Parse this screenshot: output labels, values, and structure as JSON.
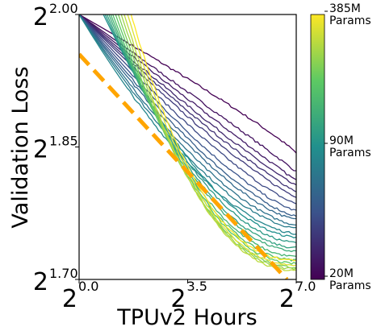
{
  "chart_data": {
    "type": "line",
    "xlabel": "TPUv2 Hours",
    "ylabel": "Validation Loss",
    "x_scale": "log2",
    "y_scale": "log2",
    "xlim_exponent": [
      0.0,
      7.0
    ],
    "ylim_exponent": [
      1.7,
      2.0
    ],
    "x_ticks": [
      {
        "base": "2",
        "exp": "0.0",
        "value": 0.0
      },
      {
        "base": "2",
        "exp": "3.5",
        "value": 3.5
      },
      {
        "base": "2",
        "exp": "7.0",
        "value": 7.0
      }
    ],
    "y_ticks": [
      {
        "base": "2",
        "exp": "1.70",
        "value": 1.7
      },
      {
        "base": "2",
        "exp": "1.85",
        "value": 1.85
      },
      {
        "base": "2",
        "exp": "2.00",
        "value": 2.0
      }
    ],
    "colorbar": {
      "labels": [
        {
          "line1": "385M",
          "line2": "Params",
          "position": "top"
        },
        {
          "line1": "90M",
          "line2": "Params",
          "position": "middle"
        },
        {
          "line1": "20M",
          "line2": "Params",
          "position": "bottom"
        }
      ],
      "colormap": "viridis",
      "colors": [
        "#440154",
        "#3b528b",
        "#21908d",
        "#5dc963",
        "#fde725"
      ]
    },
    "frontier": {
      "style": "dashed",
      "color": "#ffa500",
      "points": [
        [
          0.0,
          1.955
        ],
        [
          6.7,
          1.7
        ]
      ]
    },
    "series": [
      {
        "t": 0.0,
        "start_y": 2.0,
        "end_y": 1.843
      },
      {
        "t": 0.05,
        "start_y": 2.0,
        "end_y": 1.822
      },
      {
        "t": 0.08,
        "start_y": 2.0,
        "end_y": 1.812
      },
      {
        "t": 0.12,
        "start_y": 2.0,
        "end_y": 1.806
      },
      {
        "t": 0.15,
        "start_y": 2.0,
        "end_y": 1.8
      },
      {
        "t": 0.18,
        "start_y": 2.0,
        "end_y": 1.794
      },
      {
        "t": 0.22,
        "start_y": 2.0,
        "end_y": 1.786
      },
      {
        "t": 0.26,
        "start_y": 2.0,
        "end_y": 1.778
      },
      {
        "t": 0.3,
        "start_y": 2.0,
        "end_y": 1.772
      },
      {
        "t": 0.34,
        "start_y": 2.0,
        "end_y": 1.768
      },
      {
        "t": 0.38,
        "start_y": 2.0,
        "end_y": 1.762
      },
      {
        "t": 0.42,
        "start_y": 2.0,
        "end_y": 1.758
      },
      {
        "t": 0.46,
        "start_y": 2.0,
        "end_y": 1.752
      },
      {
        "t": 0.5,
        "start_y": 2.0,
        "end_y": 1.748
      },
      {
        "t": 0.54,
        "start_y": 2.0,
        "end_y": 1.742
      },
      {
        "t": 0.58,
        "start_y": 2.0,
        "end_y": 1.736
      },
      {
        "t": 0.62,
        "start_y": 2.0,
        "end_y": 1.732
      },
      {
        "t": 0.66,
        "start_y": 2.0,
        "end_y": 1.726
      },
      {
        "t": 0.7,
        "start_y": 2.0,
        "end_y": 1.722
      },
      {
        "t": 0.75,
        "start_y": 2.0,
        "end_y": 1.718
      },
      {
        "t": 0.8,
        "start_y": 2.0,
        "end_y": 1.714
      },
      {
        "t": 0.85,
        "start_y": 2.0,
        "end_y": 1.712
      },
      {
        "t": 0.9,
        "start_y": 2.0,
        "end_y": 1.71
      },
      {
        "t": 0.95,
        "start_y": 2.0,
        "end_y": 1.716
      },
      {
        "t": 1.0,
        "start_y": 2.0,
        "end_y": 1.722
      }
    ]
  }
}
